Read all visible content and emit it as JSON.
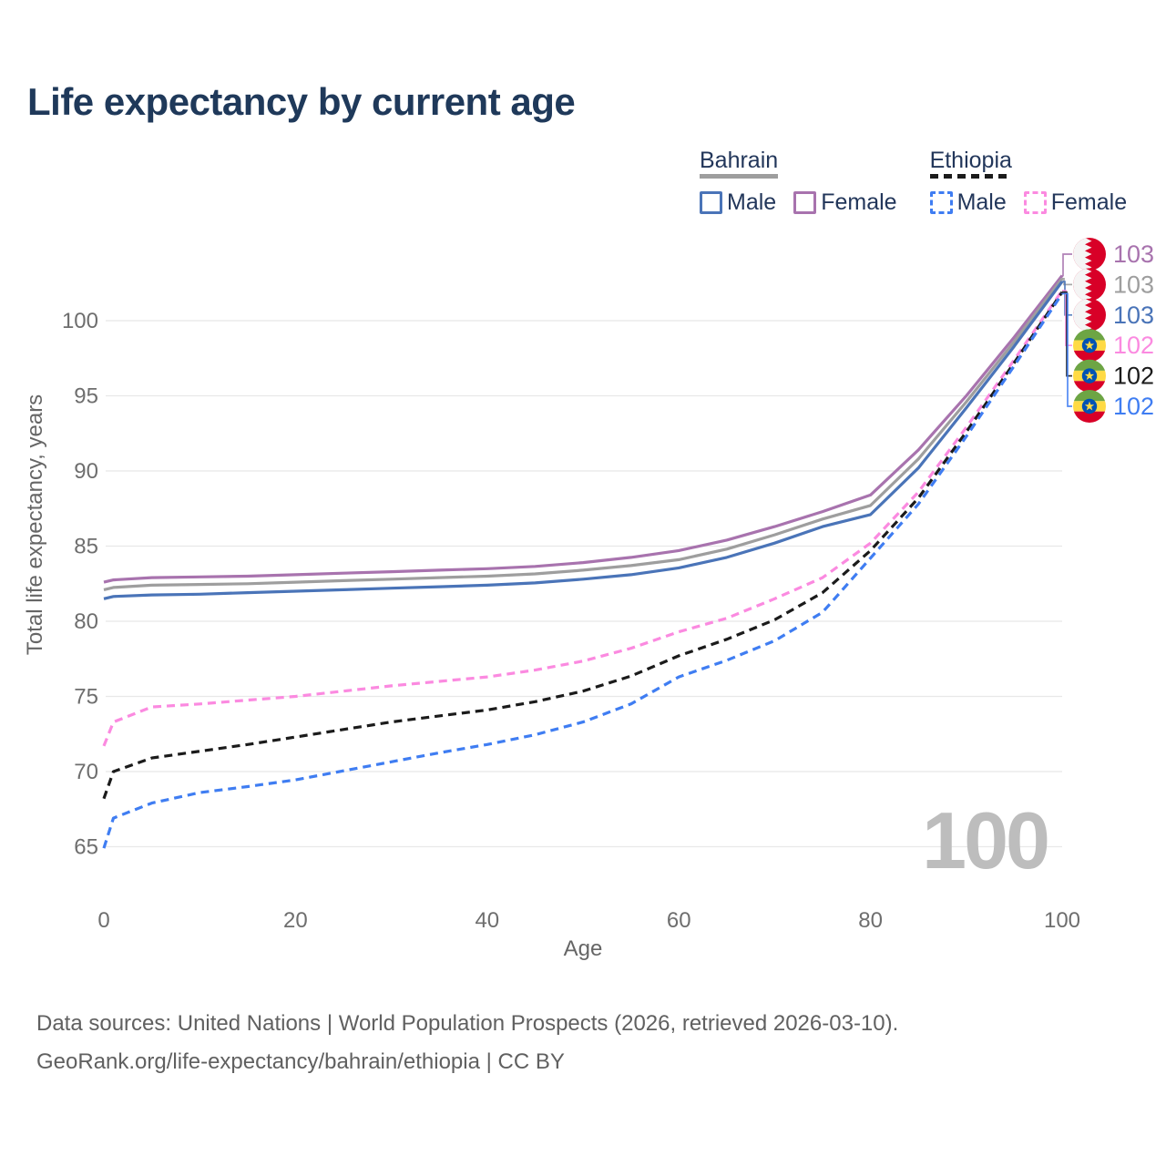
{
  "page": {
    "title": "Life expectancy by current age"
  },
  "legend": {
    "groups": [
      {
        "country": "Bahrain",
        "underline_series": "Bahrain-All",
        "items": [
          {
            "label": "Male",
            "series_key": "Bahrain-Male"
          },
          {
            "label": "Female",
            "series_key": "Bahrain-Female"
          }
        ]
      },
      {
        "country": "Ethiopia",
        "underline_series": "Ethiopia-All",
        "items": [
          {
            "label": "Male",
            "series_key": "Ethiopia-Male"
          },
          {
            "label": "Female",
            "series_key": "Ethiopia-Female"
          }
        ]
      }
    ]
  },
  "chart_data": {
    "type": "line",
    "title": "Life expectancy by current age",
    "xlabel": "Age",
    "ylabel": "Total life expectancy, years",
    "x_ticks": [
      0,
      20,
      40,
      60,
      80,
      100
    ],
    "y_ticks": [
      65,
      70,
      75,
      80,
      85,
      90,
      95,
      100
    ],
    "xlim": [
      0,
      100
    ],
    "ylim": [
      64.5,
      103.5
    ],
    "grid": "horizontal",
    "legend_position": "top-right",
    "age_indicator": "100",
    "grid_color": "#e8e8e8",
    "tick_color": "#6e6e6e",
    "watermark_color": "#bdbdbd",
    "x": [
      0,
      1,
      5,
      10,
      15,
      20,
      25,
      30,
      35,
      40,
      45,
      50,
      55,
      60,
      65,
      70,
      75,
      80,
      85,
      90,
      95,
      100
    ],
    "series": [
      {
        "name": "Bahrain Female",
        "country": "Bahrain",
        "sex": "Female",
        "color": "#a873ae",
        "dashed": false,
        "flag": "bahrain",
        "end_label": "103",
        "values": [
          82.6,
          82.75,
          82.9,
          82.95,
          83.0,
          83.1,
          83.2,
          83.3,
          83.4,
          83.5,
          83.65,
          83.9,
          84.25,
          84.7,
          85.4,
          86.3,
          87.3,
          88.4,
          91.4,
          95.0,
          98.9,
          103.0
        ]
      },
      {
        "name": "Bahrain All",
        "country": "Bahrain",
        "sex": "All",
        "color": "#9e9e9e",
        "dashed": false,
        "flag": "bahrain",
        "end_label": "103",
        "values": [
          82.1,
          82.25,
          82.4,
          82.45,
          82.5,
          82.6,
          82.7,
          82.8,
          82.9,
          83.0,
          83.15,
          83.4,
          83.7,
          84.1,
          84.8,
          85.75,
          86.8,
          87.7,
          90.8,
          94.6,
          98.6,
          102.8
        ]
      },
      {
        "name": "Bahrain Male",
        "country": "Bahrain",
        "sex": "Male",
        "color": "#4a74b8",
        "dashed": false,
        "flag": "bahrain",
        "end_label": "103",
        "values": [
          81.5,
          81.65,
          81.75,
          81.8,
          81.9,
          82.0,
          82.1,
          82.2,
          82.3,
          82.4,
          82.55,
          82.8,
          83.1,
          83.55,
          84.25,
          85.2,
          86.3,
          87.1,
          90.2,
          94.2,
          98.3,
          102.6
        ]
      },
      {
        "name": "Ethiopia Female",
        "country": "Ethiopia",
        "sex": "Female",
        "color": "#fb8ae0",
        "dashed": true,
        "flag": "ethiopia",
        "end_label": "102",
        "values": [
          71.7,
          73.3,
          74.3,
          74.5,
          74.75,
          75.0,
          75.35,
          75.7,
          76.0,
          76.3,
          76.75,
          77.35,
          78.2,
          79.3,
          80.2,
          81.5,
          82.9,
          85.2,
          88.6,
          92.9,
          97.4,
          102.0
        ]
      },
      {
        "name": "Ethiopia All",
        "country": "Ethiopia",
        "sex": "All",
        "color": "#1b1b1b",
        "dashed": true,
        "flag": "ethiopia",
        "end_label": "102",
        "values": [
          68.2,
          70.0,
          70.9,
          71.35,
          71.8,
          72.3,
          72.8,
          73.3,
          73.7,
          74.1,
          74.65,
          75.35,
          76.35,
          77.7,
          78.8,
          80.1,
          81.9,
          84.7,
          88.2,
          92.6,
          97.2,
          101.9
        ]
      },
      {
        "name": "Ethiopia Male",
        "country": "Ethiopia",
        "sex": "Male",
        "color": "#3f7df2",
        "dashed": true,
        "flag": "ethiopia",
        "end_label": "102",
        "values": [
          64.9,
          66.9,
          67.9,
          68.6,
          69.0,
          69.45,
          70.05,
          70.65,
          71.25,
          71.8,
          72.45,
          73.3,
          74.5,
          76.3,
          77.4,
          78.7,
          80.6,
          84.2,
          87.8,
          92.3,
          97.0,
          101.8
        ]
      }
    ]
  },
  "footer": {
    "line1": "Data sources: United Nations | World Population Prospects (2026, retrieved 2026-03-10).",
    "line2": "GeoRank.org/life-expectancy/bahrain/ethiopia | CC BY"
  }
}
